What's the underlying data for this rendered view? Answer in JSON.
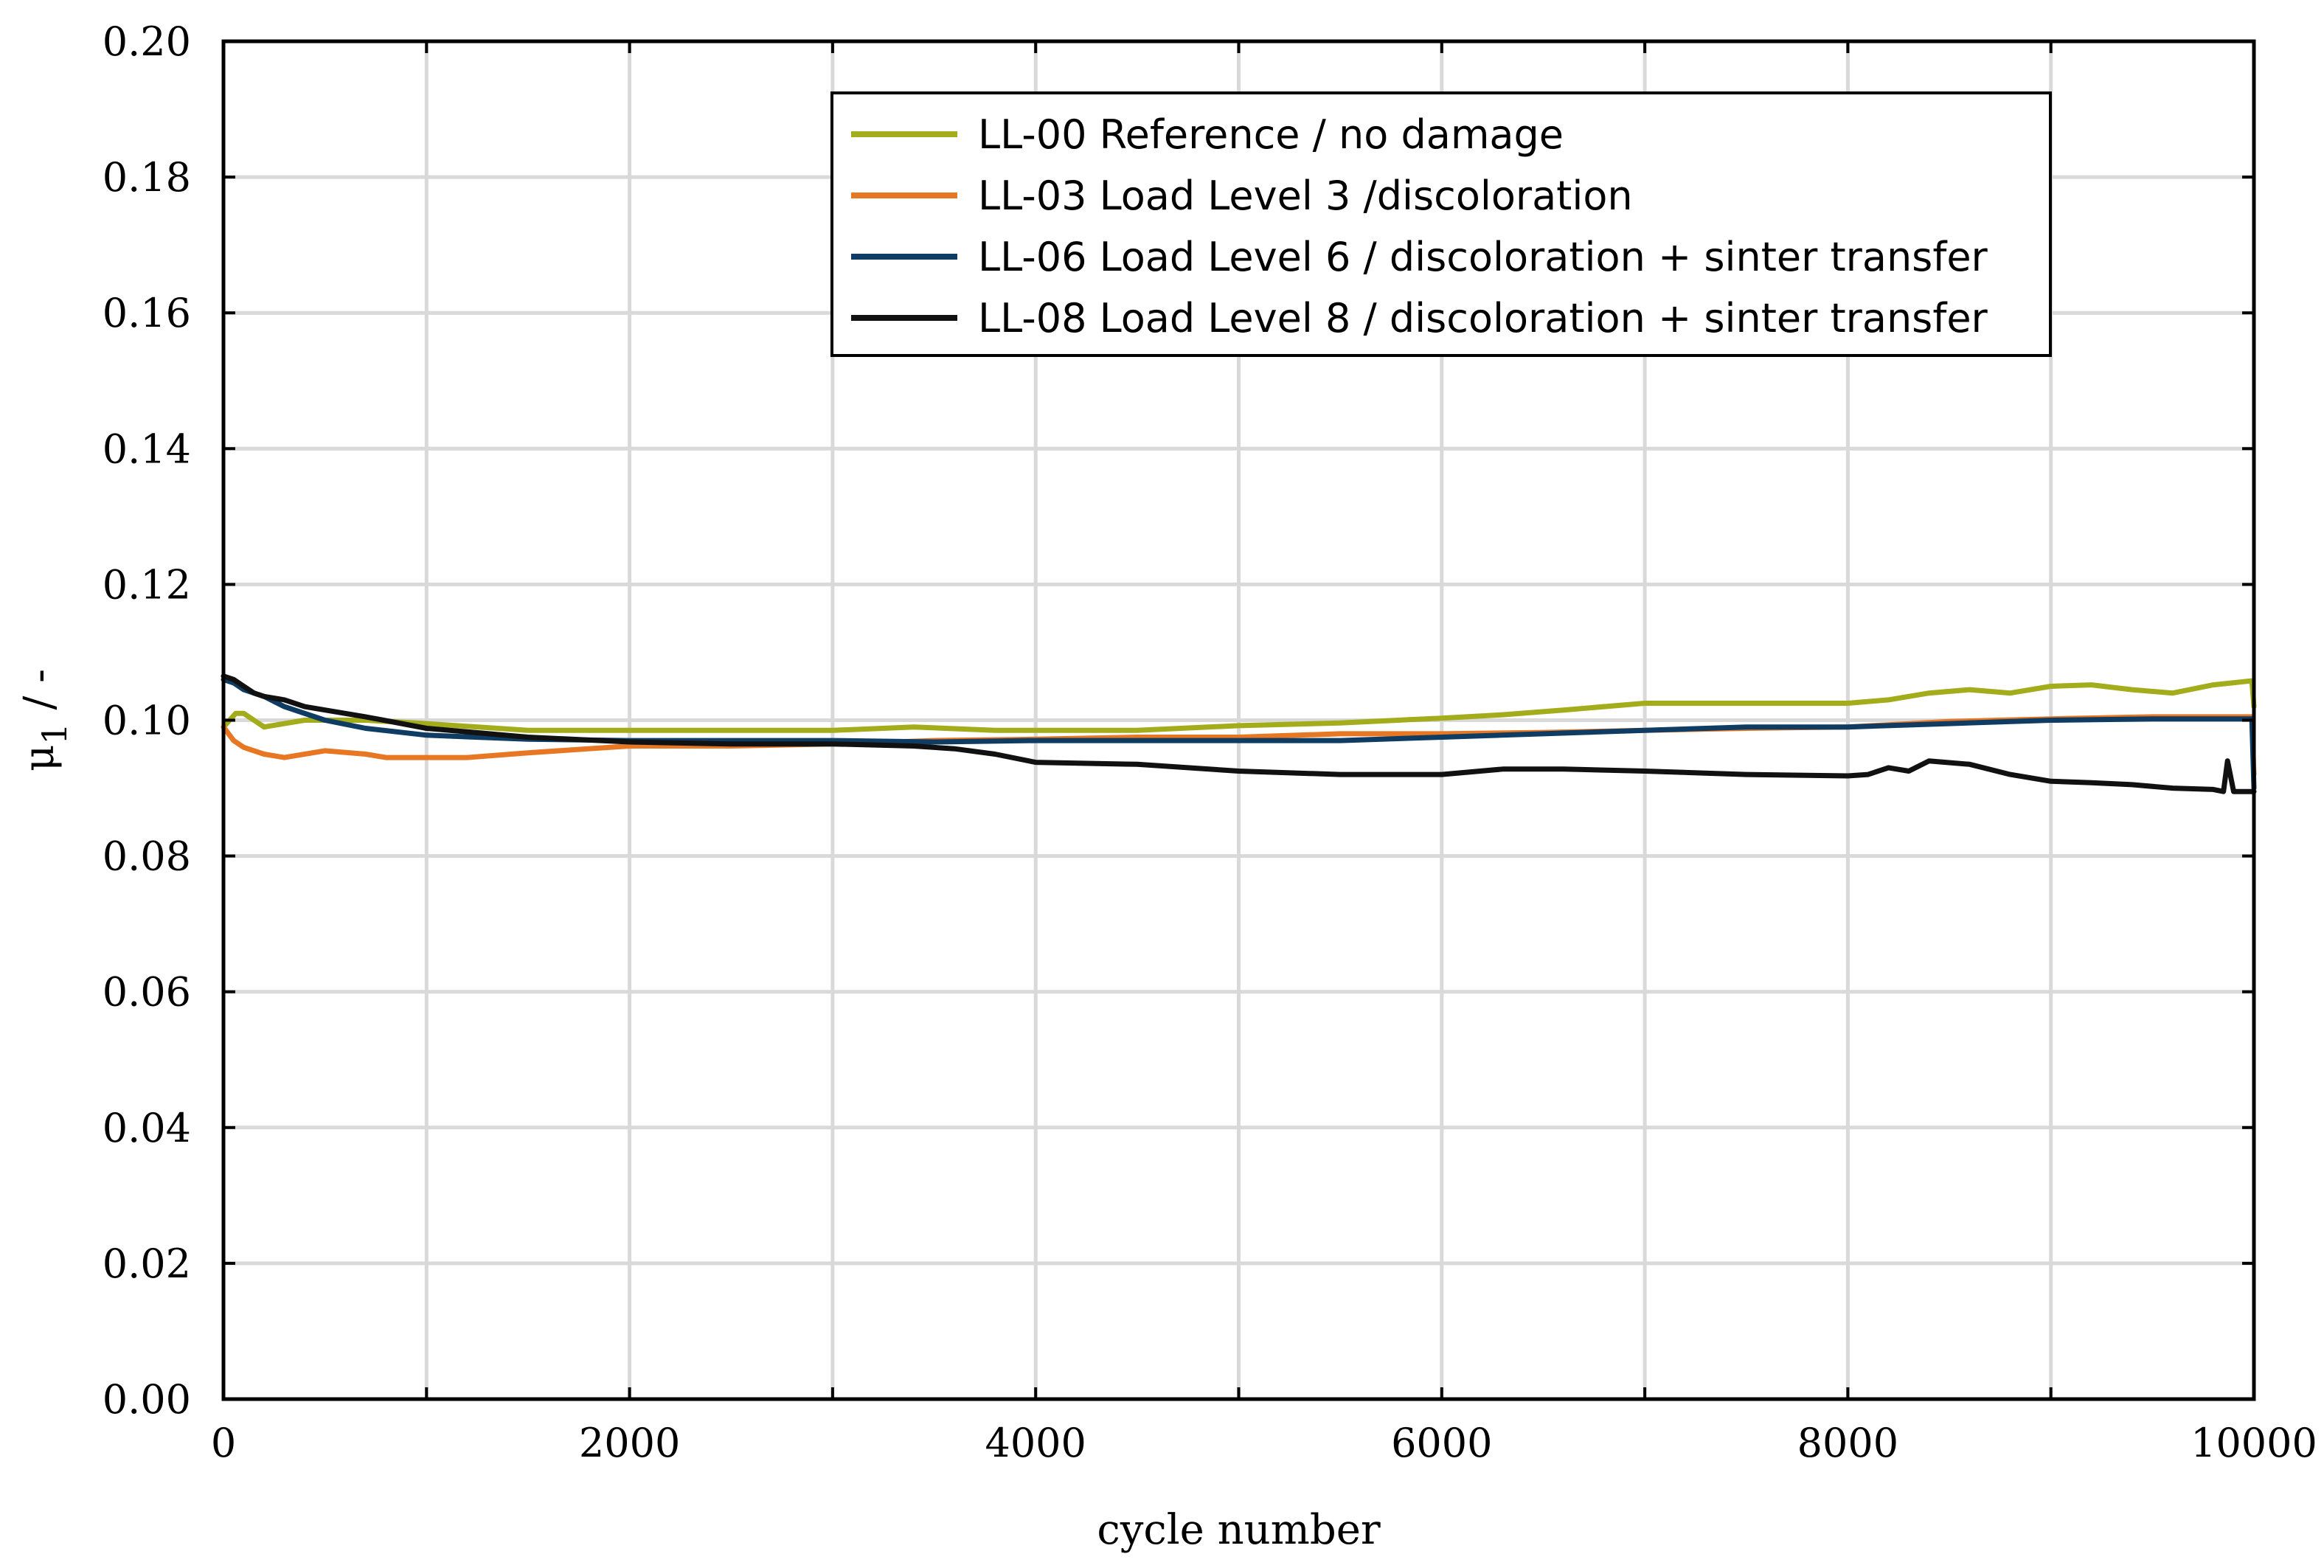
{
  "chart_data": {
    "type": "line",
    "title": "",
    "xlabel": "cycle number",
    "ylabel_symbol": "μ",
    "ylabel_subscript": "1",
    "ylabel_unit": " / -",
    "xlim": [
      0,
      10000
    ],
    "ylim": [
      0,
      0.2
    ],
    "x_ticks": [
      0,
      2000,
      4000,
      6000,
      8000,
      10000
    ],
    "x_tick_labels": [
      "0",
      "2000",
      "4000",
      "6000",
      "8000",
      "10000"
    ],
    "x_grid_step": 1000,
    "y_ticks": [
      0,
      0.02,
      0.04,
      0.06,
      0.08,
      0.1,
      0.12,
      0.14,
      0.16,
      0.18,
      0.2
    ],
    "y_tick_labels": [
      "0.00",
      "0.02",
      "0.04",
      "0.06",
      "0.08",
      "0.10",
      "0.12",
      "0.14",
      "0.16",
      "0.18",
      "0.20"
    ],
    "grid": true,
    "legend_position": "top-right",
    "series": [
      {
        "name": "LL-00 Reference / no damage",
        "color": "#a3ad1c",
        "x": [
          0,
          30,
          60,
          100,
          150,
          200,
          300,
          400,
          500,
          700,
          1000,
          1500,
          2000,
          2500,
          3000,
          3400,
          3800,
          4000,
          4500,
          5000,
          5500,
          6000,
          6300,
          6600,
          7000,
          7400,
          7800,
          8000,
          8200,
          8400,
          8600,
          8800,
          9000,
          9200,
          9400,
          9600,
          9800,
          9990,
          10000
        ],
        "y": [
          0.099,
          0.1,
          0.101,
          0.101,
          0.1,
          0.099,
          0.0995,
          0.1,
          0.1,
          0.1,
          0.0995,
          0.0985,
          0.0985,
          0.0985,
          0.0985,
          0.099,
          0.0985,
          0.0985,
          0.0985,
          0.0992,
          0.0996,
          0.1003,
          0.1008,
          0.1015,
          0.1025,
          0.1025,
          0.1025,
          0.1025,
          0.103,
          0.104,
          0.1045,
          0.104,
          0.105,
          0.1052,
          0.1045,
          0.104,
          0.1052,
          0.1058,
          0.102
        ]
      },
      {
        "name": "LL-03 Load Level 3 /discoloration",
        "color": "#e87724",
        "x": [
          0,
          50,
          100,
          200,
          300,
          500,
          700,
          800,
          1000,
          1200,
          1500,
          2000,
          2500,
          3000,
          3500,
          4000,
          4500,
          5000,
          5500,
          6000,
          6500,
          7000,
          7500,
          8000,
          8500,
          9000,
          9500,
          9990,
          10000
        ],
        "y": [
          0.099,
          0.097,
          0.096,
          0.095,
          0.0945,
          0.0955,
          0.095,
          0.0945,
          0.0945,
          0.0945,
          0.0952,
          0.0962,
          0.0962,
          0.0965,
          0.097,
          0.0972,
          0.0975,
          0.0975,
          0.098,
          0.098,
          0.0982,
          0.0985,
          0.0988,
          0.099,
          0.0998,
          0.1002,
          0.1005,
          0.1005,
          0.092
        ]
      },
      {
        "name": "LL-06 Load Level 6 / discoloration + sinter transfer",
        "color": "#0f3c63",
        "x": [
          0,
          50,
          100,
          200,
          300,
          500,
          700,
          1000,
          1500,
          2000,
          2500,
          3000,
          3500,
          4000,
          4500,
          5000,
          5500,
          6000,
          6500,
          7000,
          7500,
          8000,
          8500,
          9000,
          9500,
          9990,
          10000
        ],
        "y": [
          0.106,
          0.1055,
          0.1045,
          0.1035,
          0.102,
          0.1,
          0.0988,
          0.0978,
          0.0972,
          0.097,
          0.097,
          0.097,
          0.0968,
          0.097,
          0.097,
          0.097,
          0.097,
          0.0975,
          0.098,
          0.0985,
          0.099,
          0.099,
          0.0995,
          0.1,
          0.1002,
          0.1002,
          0.09
        ]
      },
      {
        "name": "LL-08 Load Level 8 / discoloration + sinter transfer",
        "color": "#111111",
        "x": [
          0,
          50,
          100,
          150,
          200,
          300,
          400,
          500,
          700,
          1000,
          1500,
          2000,
          2500,
          3000,
          3400,
          3600,
          3800,
          4000,
          4500,
          5000,
          5500,
          6000,
          6300,
          6600,
          7000,
          7500,
          8000,
          8100,
          8200,
          8300,
          8400,
          8600,
          8800,
          9000,
          9200,
          9400,
          9600,
          9800,
          9850,
          9870,
          9900,
          9950,
          10000
        ],
        "y": [
          0.1065,
          0.106,
          0.105,
          0.104,
          0.1035,
          0.103,
          0.102,
          0.1015,
          0.1005,
          0.0988,
          0.0975,
          0.0968,
          0.0965,
          0.0965,
          0.0962,
          0.0958,
          0.095,
          0.0938,
          0.0935,
          0.0925,
          0.092,
          0.092,
          0.0928,
          0.0928,
          0.0925,
          0.092,
          0.0918,
          0.092,
          0.093,
          0.0925,
          0.094,
          0.0935,
          0.092,
          0.091,
          0.0908,
          0.0905,
          0.09,
          0.0898,
          0.0895,
          0.094,
          0.0895,
          0.0895,
          0.0895
        ]
      }
    ]
  }
}
